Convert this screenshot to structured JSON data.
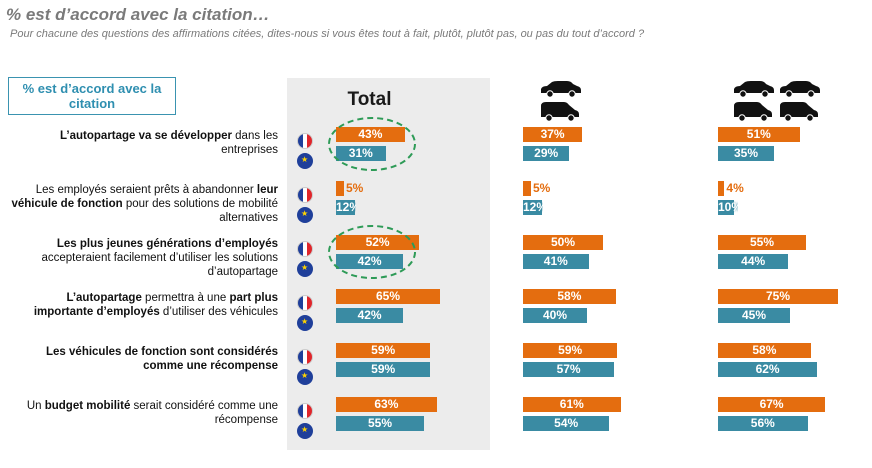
{
  "header": {
    "title": "% est d’accord avec la citation…",
    "subtitle": "Pour chacune des questions des affirmations citées, dites-nous si vous êtes tout à fait, plutôt, plutôt pas, ou pas du tout d’accord ?"
  },
  "legend_box": {
    "text": "% est d’accord avec la citation"
  },
  "columns": {
    "total_label": "Total"
  },
  "colors": {
    "fr": "#e46d0f",
    "eu": "#3a8ba3",
    "highlight": "#2e9b57"
  },
  "icons": [
    "france-flag-icon",
    "eu-flag-icon",
    "car-icon",
    "van-icon"
  ],
  "chart_data": {
    "type": "bar",
    "series": [
      {
        "key": "fr",
        "flag": "france"
      },
      {
        "key": "eu",
        "flag": "eu"
      }
    ],
    "groups": [
      {
        "key": "total",
        "label": "Total"
      },
      {
        "key": "g2",
        "label": ""
      },
      {
        "key": "g3",
        "label": ""
      }
    ],
    "statements": [
      {
        "parts": [
          {
            "t": "L’autopartage va se développer",
            "b": true
          },
          {
            "t": " dans les entreprises",
            "b": false
          }
        ],
        "values": {
          "total": {
            "fr": 43,
            "eu": 31
          },
          "g2": {
            "fr": 37,
            "eu": 29
          },
          "g3": {
            "fr": 51,
            "eu": 35
          }
        },
        "highlighted": true
      },
      {
        "parts": [
          {
            "t": "Les employés seraient prêts à abandonner ",
            "b": false
          },
          {
            "t": "leur véhicule de fonction",
            "b": true
          },
          {
            "t": " pour des solutions de mobilité alternatives",
            "b": false
          }
        ],
        "values": {
          "total": {
            "fr": 5,
            "eu": 12
          },
          "g2": {
            "fr": 5,
            "eu": 12
          },
          "g3": {
            "fr": 4,
            "eu": 10
          }
        },
        "highlighted": false
      },
      {
        "parts": [
          {
            "t": "Les plus jeunes générations d’employés",
            "b": true
          },
          {
            "t": " accepteraient facilement d’utiliser les solutions d’autopartage",
            "b": false
          }
        ],
        "values": {
          "total": {
            "fr": 52,
            "eu": 42
          },
          "g2": {
            "fr": 50,
            "eu": 41
          },
          "g3": {
            "fr": 55,
            "eu": 44
          }
        },
        "highlighted": true
      },
      {
        "parts": [
          {
            "t": "L’autopartage",
            "b": true
          },
          {
            "t": " permettra à une ",
            "b": false
          },
          {
            "t": "part plus importante d’employés",
            "b": true
          },
          {
            "t": " d’utiliser des véhicules",
            "b": false
          }
        ],
        "values": {
          "total": {
            "fr": 65,
            "eu": 42
          },
          "g2": {
            "fr": 58,
            "eu": 40
          },
          "g3": {
            "fr": 75,
            "eu": 45
          }
        },
        "highlighted": false
      },
      {
        "parts": [
          {
            "t": "Les véhicules de fonction sont considérés comme une récompense",
            "b": true
          }
        ],
        "values": {
          "total": {
            "fr": 59,
            "eu": 59
          },
          "g2": {
            "fr": 59,
            "eu": 57
          },
          "g3": {
            "fr": 58,
            "eu": 62
          }
        },
        "highlighted": false
      },
      {
        "parts": [
          {
            "t": "Un ",
            "b": false
          },
          {
            "t": "budget mobilité",
            "b": true
          },
          {
            "t": " serait considéré comme une récompense",
            "b": false
          }
        ],
        "values": {
          "total": {
            "fr": 63,
            "eu": 55
          },
          "g2": {
            "fr": 61,
            "eu": 54
          },
          "g3": {
            "fr": 67,
            "eu": 56
          }
        },
        "highlighted": false
      }
    ],
    "unit": "%"
  }
}
